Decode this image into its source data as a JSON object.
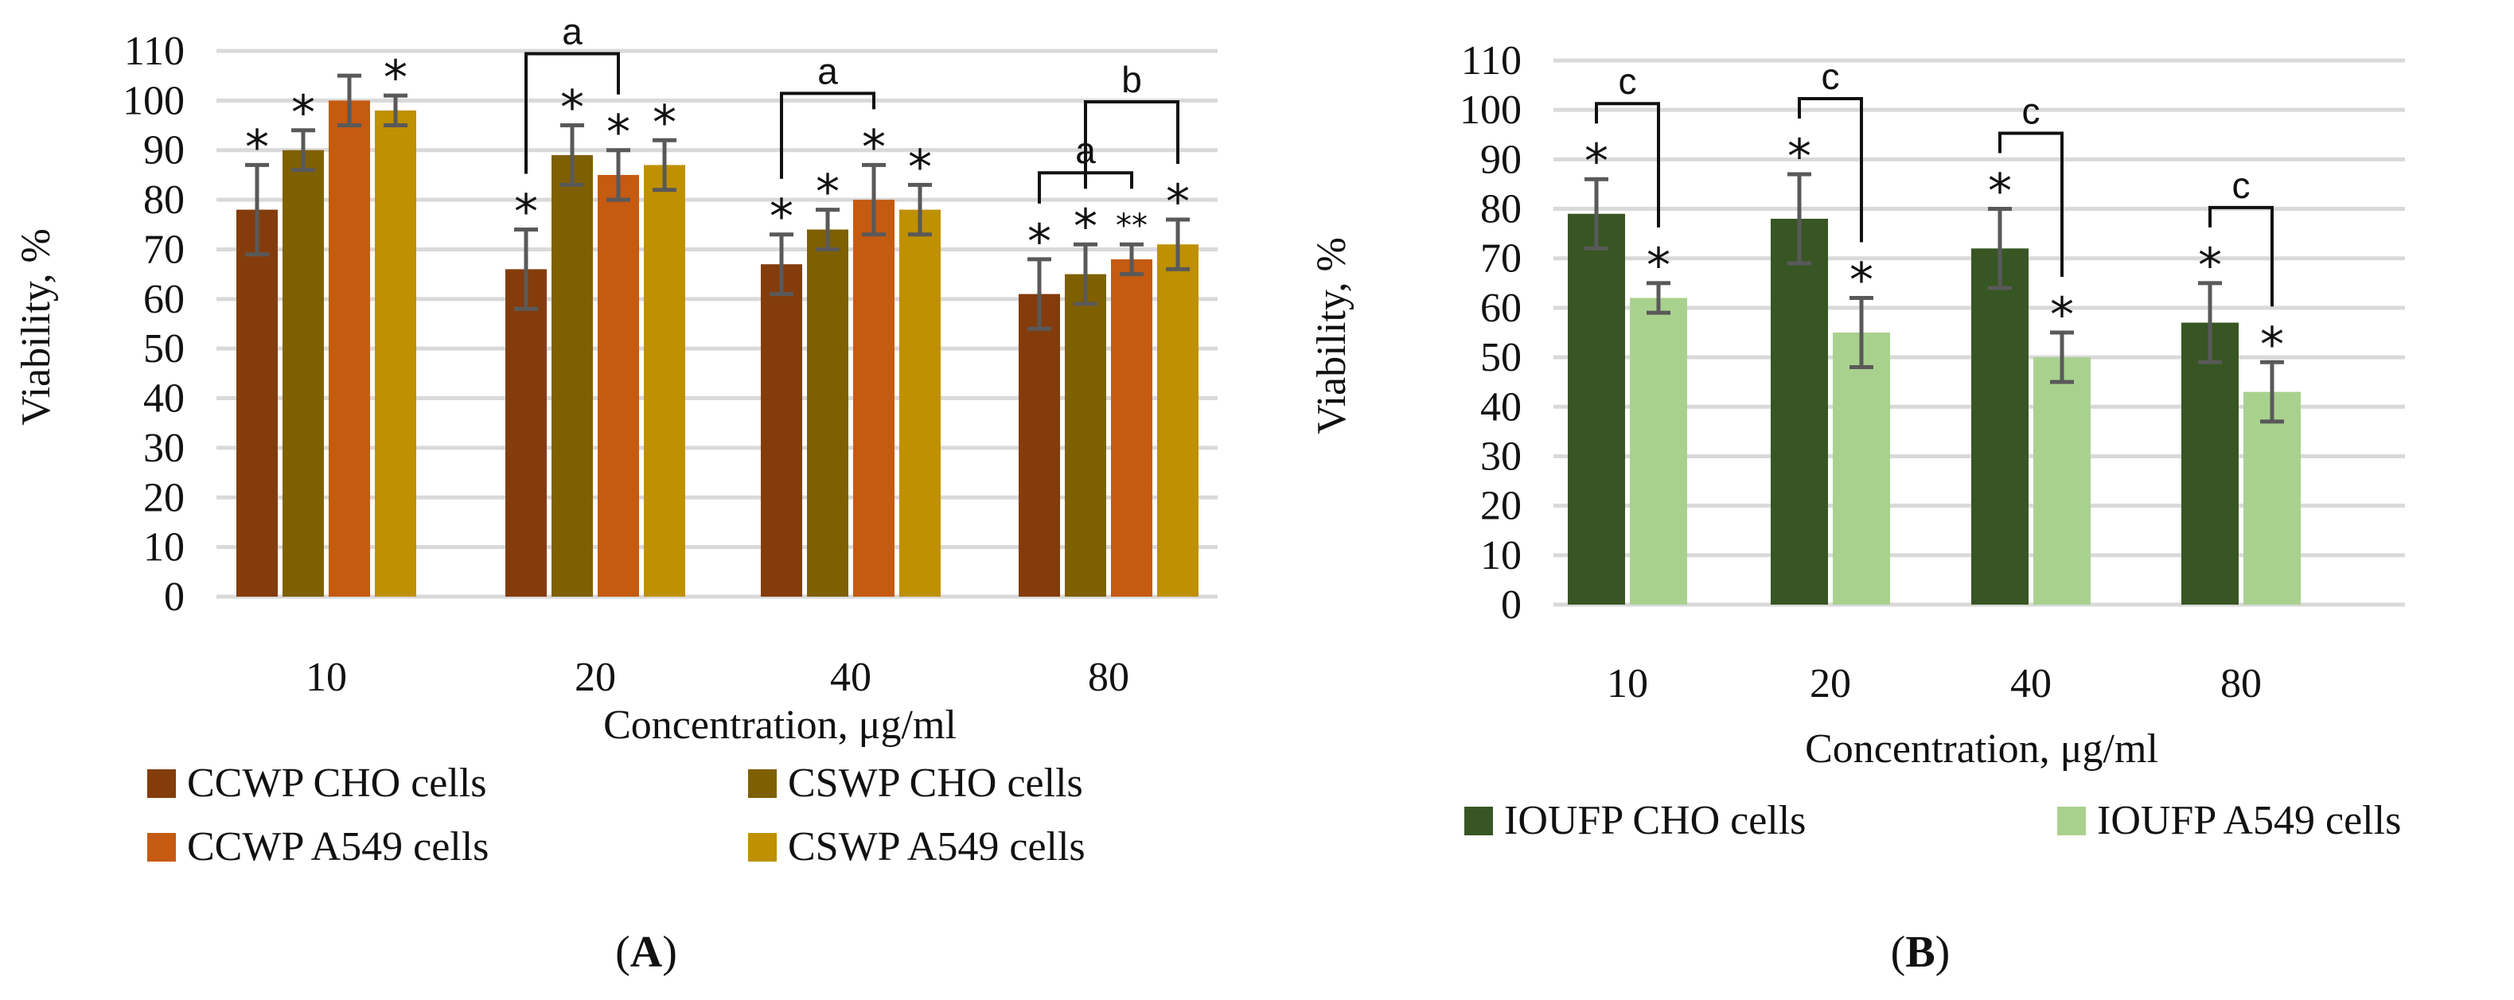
{
  "chart_data": [
    {
      "type": "bar",
      "panel_label_parts": [
        "(",
        "A",
        ")"
      ],
      "xlabel": "Concentration, μg/ml",
      "ylabel": "Viability, %",
      "ylim": [
        0,
        110
      ],
      "yticks": [
        "0",
        "10",
        "20",
        "30",
        "40",
        "50",
        "60",
        "70",
        "80",
        "90",
        "100",
        "110"
      ],
      "categories": [
        "10",
        "20",
        "40",
        "80"
      ],
      "grid": true,
      "legend_position": "bottom",
      "series": [
        {
          "name": "CCWP CHO cells",
          "color": "#843C0C",
          "values": [
            78,
            66,
            67,
            61
          ],
          "errors": [
            9,
            8,
            6,
            7
          ],
          "marks": [
            "*",
            "*",
            "*",
            "*"
          ]
        },
        {
          "name": "CSWP CHO cells",
          "color": "#7F6000",
          "values": [
            90,
            89,
            74,
            65
          ],
          "errors": [
            4,
            6,
            4,
            6
          ],
          "marks": [
            "*",
            "*",
            "*",
            "*"
          ]
        },
        {
          "name": "CCWP A549 cells",
          "color": "#C55A11",
          "values": [
            100,
            85,
            80,
            68
          ],
          "errors": [
            5,
            5,
            7,
            3
          ],
          "marks": [
            "",
            "*",
            "*",
            "**"
          ]
        },
        {
          "name": "CSWP A549 cells",
          "color": "#BF9000",
          "values": [
            98,
            87,
            78,
            71
          ],
          "errors": [
            3,
            5,
            5,
            5
          ],
          "marks": [
            "*",
            "*",
            "*",
            "*"
          ]
        }
      ],
      "brackets": [
        {
          "label": "a",
          "category": 1,
          "from_series": 0,
          "to_series": 2
        },
        {
          "label": "a",
          "category": 2,
          "from_series": 0,
          "to_series": 2
        },
        {
          "label": "a",
          "category": 3,
          "from_series": 0,
          "to_series": 2
        },
        {
          "label": "b",
          "category": 3,
          "from_series": 1,
          "to_series": 3
        }
      ]
    },
    {
      "type": "bar",
      "panel_label_parts": [
        "(",
        "B",
        ")"
      ],
      "xlabel": "Concentration, μg/ml",
      "ylabel": "Viability, %",
      "ylim": [
        0,
        110
      ],
      "yticks": [
        "0",
        "10",
        "20",
        "30",
        "40",
        "50",
        "60",
        "70",
        "80",
        "90",
        "100",
        "110"
      ],
      "categories": [
        "10",
        "20",
        "40",
        "80"
      ],
      "grid": true,
      "legend_position": "bottom",
      "series": [
        {
          "name": "IOUFP CHO cells",
          "color": "#375623",
          "values": [
            79,
            78,
            72,
            57
          ],
          "errors": [
            7,
            9,
            8,
            8
          ],
          "marks": [
            "*",
            "*",
            "*",
            "*"
          ]
        },
        {
          "name": "IOUFP A549 cells",
          "color": "#A9D18E",
          "values": [
            62,
            55,
            50,
            43
          ],
          "errors": [
            3,
            7,
            5,
            6
          ],
          "marks": [
            "*",
            "*",
            "*",
            "*"
          ]
        }
      ],
      "brackets": [
        {
          "label": "c",
          "category": 0,
          "from_series": 0,
          "to_series": 1
        },
        {
          "label": "c",
          "category": 1,
          "from_series": 0,
          "to_series": 1
        },
        {
          "label": "c",
          "category": 2,
          "from_series": 0,
          "to_series": 1
        },
        {
          "label": "c",
          "category": 3,
          "from_series": 0,
          "to_series": 1
        }
      ]
    }
  ]
}
